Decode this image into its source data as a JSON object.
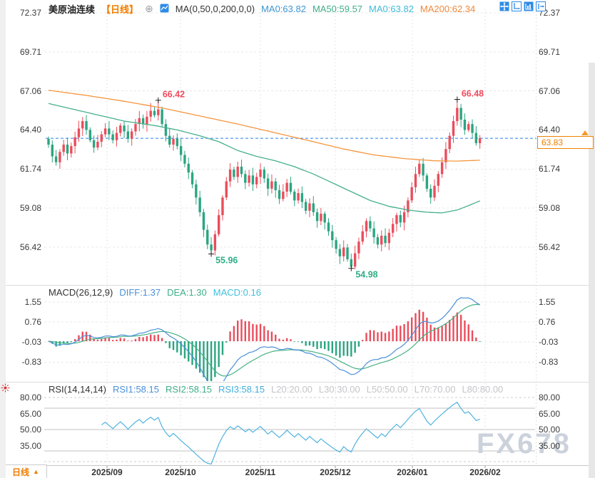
{
  "app": {
    "watermark": "FX678"
  },
  "header": {
    "symbol": "美原油连续",
    "period_tag": "【日线】",
    "add_icon": "⊕",
    "ma_settings": "MA(0,50,0,200,0,0)",
    "ma_values": [
      {
        "text": "MA0:63.82",
        "color": "#3d96d2"
      },
      {
        "text": "MA50:59.57",
        "color": "#3fae88"
      },
      {
        "text": "MA0:63.82",
        "color": "#3fbcd8"
      },
      {
        "text": "MA200:62.34",
        "color": "#f0883a"
      }
    ]
  },
  "axes": {
    "price_labels": [
      "72.37",
      "69.71",
      "67.06",
      "64.40",
      "61.74",
      "59.08",
      "56.42"
    ],
    "macd_labels": [
      "1.55",
      "0.76",
      "-0.03",
      "-0.83"
    ],
    "rsi_labels": [
      "80.00",
      "65.00",
      "50.00",
      "35.00"
    ],
    "x_labels": [
      "2025/09",
      "2025/10",
      "2025/11",
      "2025/12",
      "2026/01",
      "2026/02"
    ]
  },
  "price_tag": {
    "value": "63.83"
  },
  "timeframe_button": {
    "label": "日线",
    "arrow": "▲"
  },
  "macd_panel": {
    "title": "MACD(26,12,9)",
    "values": [
      {
        "text": "DIFF:1.37",
        "color": "#4a90d9"
      },
      {
        "text": "DEA:1.30",
        "color": "#3fae88"
      },
      {
        "text": "MACD:0.16",
        "color": "#41c0dc"
      }
    ]
  },
  "rsi_panel": {
    "title": "RSI(14,14,14)",
    "values": [
      {
        "text": "RSI1:58.15",
        "color": "#4a90d9"
      },
      {
        "text": "RSI2:58.15",
        "color": "#3fae88"
      },
      {
        "text": "RSI3:58.15",
        "color": "#41aedc"
      },
      {
        "text": "L20:20.00",
        "color": "#c5c5c9"
      },
      {
        "text": "L30:30.00",
        "color": "#c5c5c9"
      },
      {
        "text": "L50:50.00",
        "color": "#c5c5c9"
      },
      {
        "text": "L70:70.00",
        "color": "#c5c5c9"
      },
      {
        "text": "L80:80.00",
        "color": "#c5c5c9"
      }
    ]
  },
  "chart_data": [
    {
      "type": "candlestick",
      "title": "美原油连续 日线",
      "x_axis_labels": [
        "2025/09",
        "2025/10",
        "2025/11",
        "2025/12",
        "2026/01",
        "2026/02"
      ],
      "ylim": [
        54.1,
        72.8
      ],
      "y_ticks": [
        72.37,
        69.71,
        67.06,
        64.4,
        61.74,
        59.08,
        56.42
      ],
      "last_price": 63.83,
      "first_open": 63.8,
      "closes": [
        63.4,
        62.6,
        62.2,
        62.9,
        63.4,
        62.8,
        63.3,
        63.9,
        64.5,
        65.0,
        64.4,
        63.7,
        63.2,
        63.6,
        64.1,
        64.5,
        64.1,
        63.7,
        64.2,
        64.7,
        64.3,
        63.8,
        64.3,
        64.8,
        65.2,
        64.8,
        65.3,
        65.7,
        65.4,
        65.8,
        64.8,
        64.0,
        63.4,
        63.8,
        63.3,
        62.7,
        62.1,
        61.5,
        60.7,
        59.8,
        58.8,
        57.6,
        56.6,
        56.2,
        57.3,
        58.6,
        59.8,
        60.9,
        61.7,
        61.2,
        61.9,
        61.4,
        60.8,
        61.3,
        60.7,
        61.2,
        61.7,
        61.1,
        60.4,
        60.9,
        60.3,
        59.7,
        60.2,
        60.8,
        60.2,
        59.6,
        60.1,
        59.5,
        58.9,
        59.4,
        58.8,
        58.2,
        58.7,
        58.1,
        57.5,
        56.9,
        56.3,
        55.8,
        56.4,
        55.6,
        55.1,
        56.0,
        56.8,
        57.5,
        58.2,
        57.7,
        57.1,
        56.6,
        57.2,
        56.7,
        57.4,
        58.0,
        58.6,
        58.1,
        58.8,
        59.6,
        60.5,
        61.4,
        62.1,
        61.3,
        60.4,
        59.8,
        60.6,
        61.4,
        62.2,
        63.1,
        64.0,
        65.0,
        65.9,
        65.1,
        64.4,
        64.8,
        64.2,
        63.5,
        63.83
      ],
      "extreme_overrides": {
        "29": {
          "high": 66.42
        },
        "43": {
          "low": 55.96
        },
        "80": {
          "low": 54.98
        },
        "108": {
          "high": 66.48
        }
      },
      "annotations": [
        {
          "index": 29,
          "value": 66.42,
          "text": "66.42",
          "kind": "high",
          "color": "#ef4b5d"
        },
        {
          "index": 43,
          "value": 55.96,
          "text": "55.96",
          "kind": "low",
          "color": "#2fae86"
        },
        {
          "index": 80,
          "value": 54.98,
          "text": "54.98",
          "kind": "low",
          "color": "#2fae86"
        },
        {
          "index": 108,
          "value": 66.48,
          "text": "66.48",
          "kind": "high",
          "color": "#ef4b5d"
        }
      ],
      "ma50_points": [
        [
          0,
          66.2
        ],
        [
          10,
          65.6
        ],
        [
          20,
          65.0
        ],
        [
          28,
          64.7
        ],
        [
          34,
          64.4
        ],
        [
          40,
          64.0
        ],
        [
          45,
          63.6
        ],
        [
          50,
          63.0
        ],
        [
          55,
          62.6
        ],
        [
          60,
          62.3
        ],
        [
          65,
          61.9
        ],
        [
          70,
          61.4
        ],
        [
          75,
          60.8
        ],
        [
          80,
          60.2
        ],
        [
          85,
          59.6
        ],
        [
          90,
          59.2
        ],
        [
          95,
          58.95
        ],
        [
          100,
          58.8
        ],
        [
          104,
          58.75
        ],
        [
          108,
          58.95
        ],
        [
          111,
          59.25
        ],
        [
          114,
          59.57
        ]
      ],
      "ma200_points": [
        [
          0,
          67.1
        ],
        [
          10,
          66.75
        ],
        [
          20,
          66.35
        ],
        [
          30,
          65.9
        ],
        [
          40,
          65.35
        ],
        [
          50,
          64.8
        ],
        [
          60,
          64.2
        ],
        [
          70,
          63.6
        ],
        [
          78,
          63.1
        ],
        [
          86,
          62.7
        ],
        [
          94,
          62.45
        ],
        [
          102,
          62.3
        ],
        [
          108,
          62.28
        ],
        [
          114,
          62.34
        ]
      ],
      "colors": {
        "up": "#ea4d5c",
        "down": "#2ba580",
        "ma50": "#46b08a",
        "ma200": "#f5953d",
        "last_price_line": "#2a7fe8"
      }
    },
    {
      "type": "bar",
      "name": "MACD",
      "params": [
        26,
        12,
        9
      ],
      "diff_last": 1.37,
      "dea_last": 1.3,
      "macd_last": 0.16,
      "y_ticks": [
        1.55,
        0.76,
        -0.03,
        -0.83
      ],
      "ylim": [
        -1.61,
        1.97
      ],
      "derived_from": "closes"
    },
    {
      "type": "line",
      "name": "RSI",
      "params": [
        14,
        14,
        14
      ],
      "rsi_last": 58.15,
      "levels": [
        20,
        30,
        50,
        70,
        80
      ],
      "y_ticks": [
        80,
        65,
        50,
        35
      ],
      "ylim": [
        17,
        94
      ],
      "derived_from": "closes"
    }
  ]
}
